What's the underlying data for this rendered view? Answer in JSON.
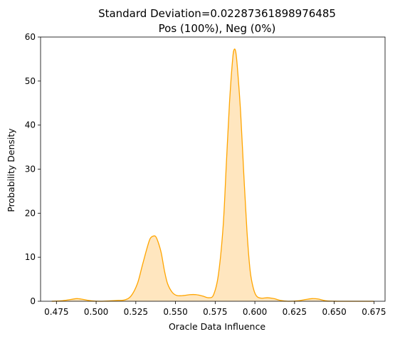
{
  "chart_data": {
    "type": "area",
    "title_line1": "Standard Deviation=0.02287361898976485",
    "title_line2": "Pos (100%), Neg (0%)",
    "xlabel": "Oracle Data Influence",
    "ylabel": "Probability Density",
    "xlim": [
      0.465,
      0.682
    ],
    "ylim": [
      0,
      60
    ],
    "x_ticks": [
      "0.475",
      "0.500",
      "0.525",
      "0.550",
      "0.575",
      "0.600",
      "0.625",
      "0.650",
      "0.675"
    ],
    "x_tick_values": [
      0.475,
      0.5,
      0.525,
      0.55,
      0.575,
      0.6,
      0.625,
      0.65,
      0.675
    ],
    "y_ticks": [
      "0",
      "10",
      "20",
      "30",
      "40",
      "50",
      "60"
    ],
    "y_tick_values": [
      0,
      10,
      20,
      30,
      40,
      50,
      60
    ],
    "grid": false,
    "line_color": "#FFA500",
    "fill_color": "#FFE6BF",
    "series": [
      {
        "x": [
          0.472,
          0.478,
          0.484,
          0.488,
          0.492,
          0.497,
          0.503,
          0.509,
          0.514,
          0.518,
          0.522,
          0.526,
          0.529,
          0.532,
          0.534,
          0.536,
          0.5375,
          0.539,
          0.541,
          0.543,
          0.545,
          0.548,
          0.551,
          0.555,
          0.559,
          0.563,
          0.567,
          0.571,
          0.574,
          0.577,
          0.58,
          0.582,
          0.584,
          0.586,
          0.587,
          0.588,
          0.589,
          0.591,
          0.593,
          0.595,
          0.597,
          0.599,
          0.601,
          0.604,
          0.608,
          0.612,
          0.616,
          0.621,
          0.627,
          0.632,
          0.636,
          0.64,
          0.645,
          0.652,
          0.66,
          0.675
        ],
        "y": [
          0,
          0.1,
          0.4,
          0.6,
          0.4,
          0.1,
          0,
          0.1,
          0.2,
          0.3,
          1.2,
          4,
          8,
          12,
          14.2,
          14.8,
          14.7,
          13.5,
          11,
          7,
          4,
          2,
          1.3,
          1.3,
          1.5,
          1.5,
          1.2,
          0.8,
          1.5,
          6,
          17,
          31,
          45,
          55,
          57.2,
          56.5,
          53,
          43,
          29,
          16,
          7,
          3,
          1.2,
          0.7,
          0.8,
          0.6,
          0.2,
          0,
          0.1,
          0.4,
          0.6,
          0.5,
          0.1,
          0,
          0,
          0
        ]
      }
    ]
  }
}
